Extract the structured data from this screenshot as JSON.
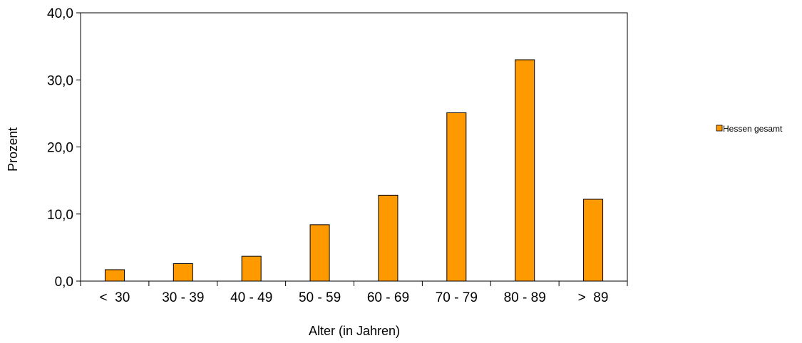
{
  "chart_data": {
    "type": "bar",
    "categories": [
      "<  30",
      "30 - 39",
      "40 - 49",
      "50 - 59",
      "60 - 69",
      "70 - 79",
      "80 - 89",
      ">  89"
    ],
    "series": [
      {
        "name": "Hessen gesamt",
        "color": "#FF9900",
        "values": [
          1.7,
          2.6,
          3.7,
          8.4,
          12.8,
          25.1,
          33.0,
          12.2
        ]
      }
    ],
    "xlabel": "Alter (in Jahren)",
    "ylabel": "Prozent",
    "ylim": [
      0,
      40
    ],
    "yticks": [
      "0,0",
      "10,0",
      "20,0",
      "30,0",
      "40,0"
    ],
    "grid": false,
    "legend_position": "right"
  }
}
